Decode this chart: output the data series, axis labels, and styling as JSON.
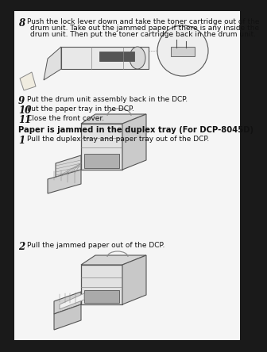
{
  "bg_color": "#1a1a1a",
  "page_color": "#f5f5f5",
  "text_color": "#111111",
  "step8_num": "8",
  "step8_text_line1": "Push the lock lever down and take the toner cartridge out of the",
  "step8_text_line2": "drum unit. Take out the jammed paper if there is any inside the",
  "step8_text_line3": "drum unit. Then put the toner cartridge back in the drum unit.",
  "step9_num": "9",
  "step9_text": "Put the drum unit assembly back in the DCP.",
  "step10_num": "10",
  "step10_text": "Put the paper tray in the DCP.",
  "step11_num": "11",
  "step11_text": "Close the front cover.",
  "section_title": "Paper is jammed in the duplex tray (For DCP-8045D)",
  "step1_num": "1",
  "step1_text": "Pull the duplex tray and paper tray out of the DCP.",
  "step2_num": "2",
  "step2_text": "Pull the jammed paper out of the DCP.",
  "font_size_text": 6.5,
  "font_size_stepnum": 8.5,
  "font_size_title": 7.2,
  "line_color": "#555555",
  "line_color_light": "#888888"
}
